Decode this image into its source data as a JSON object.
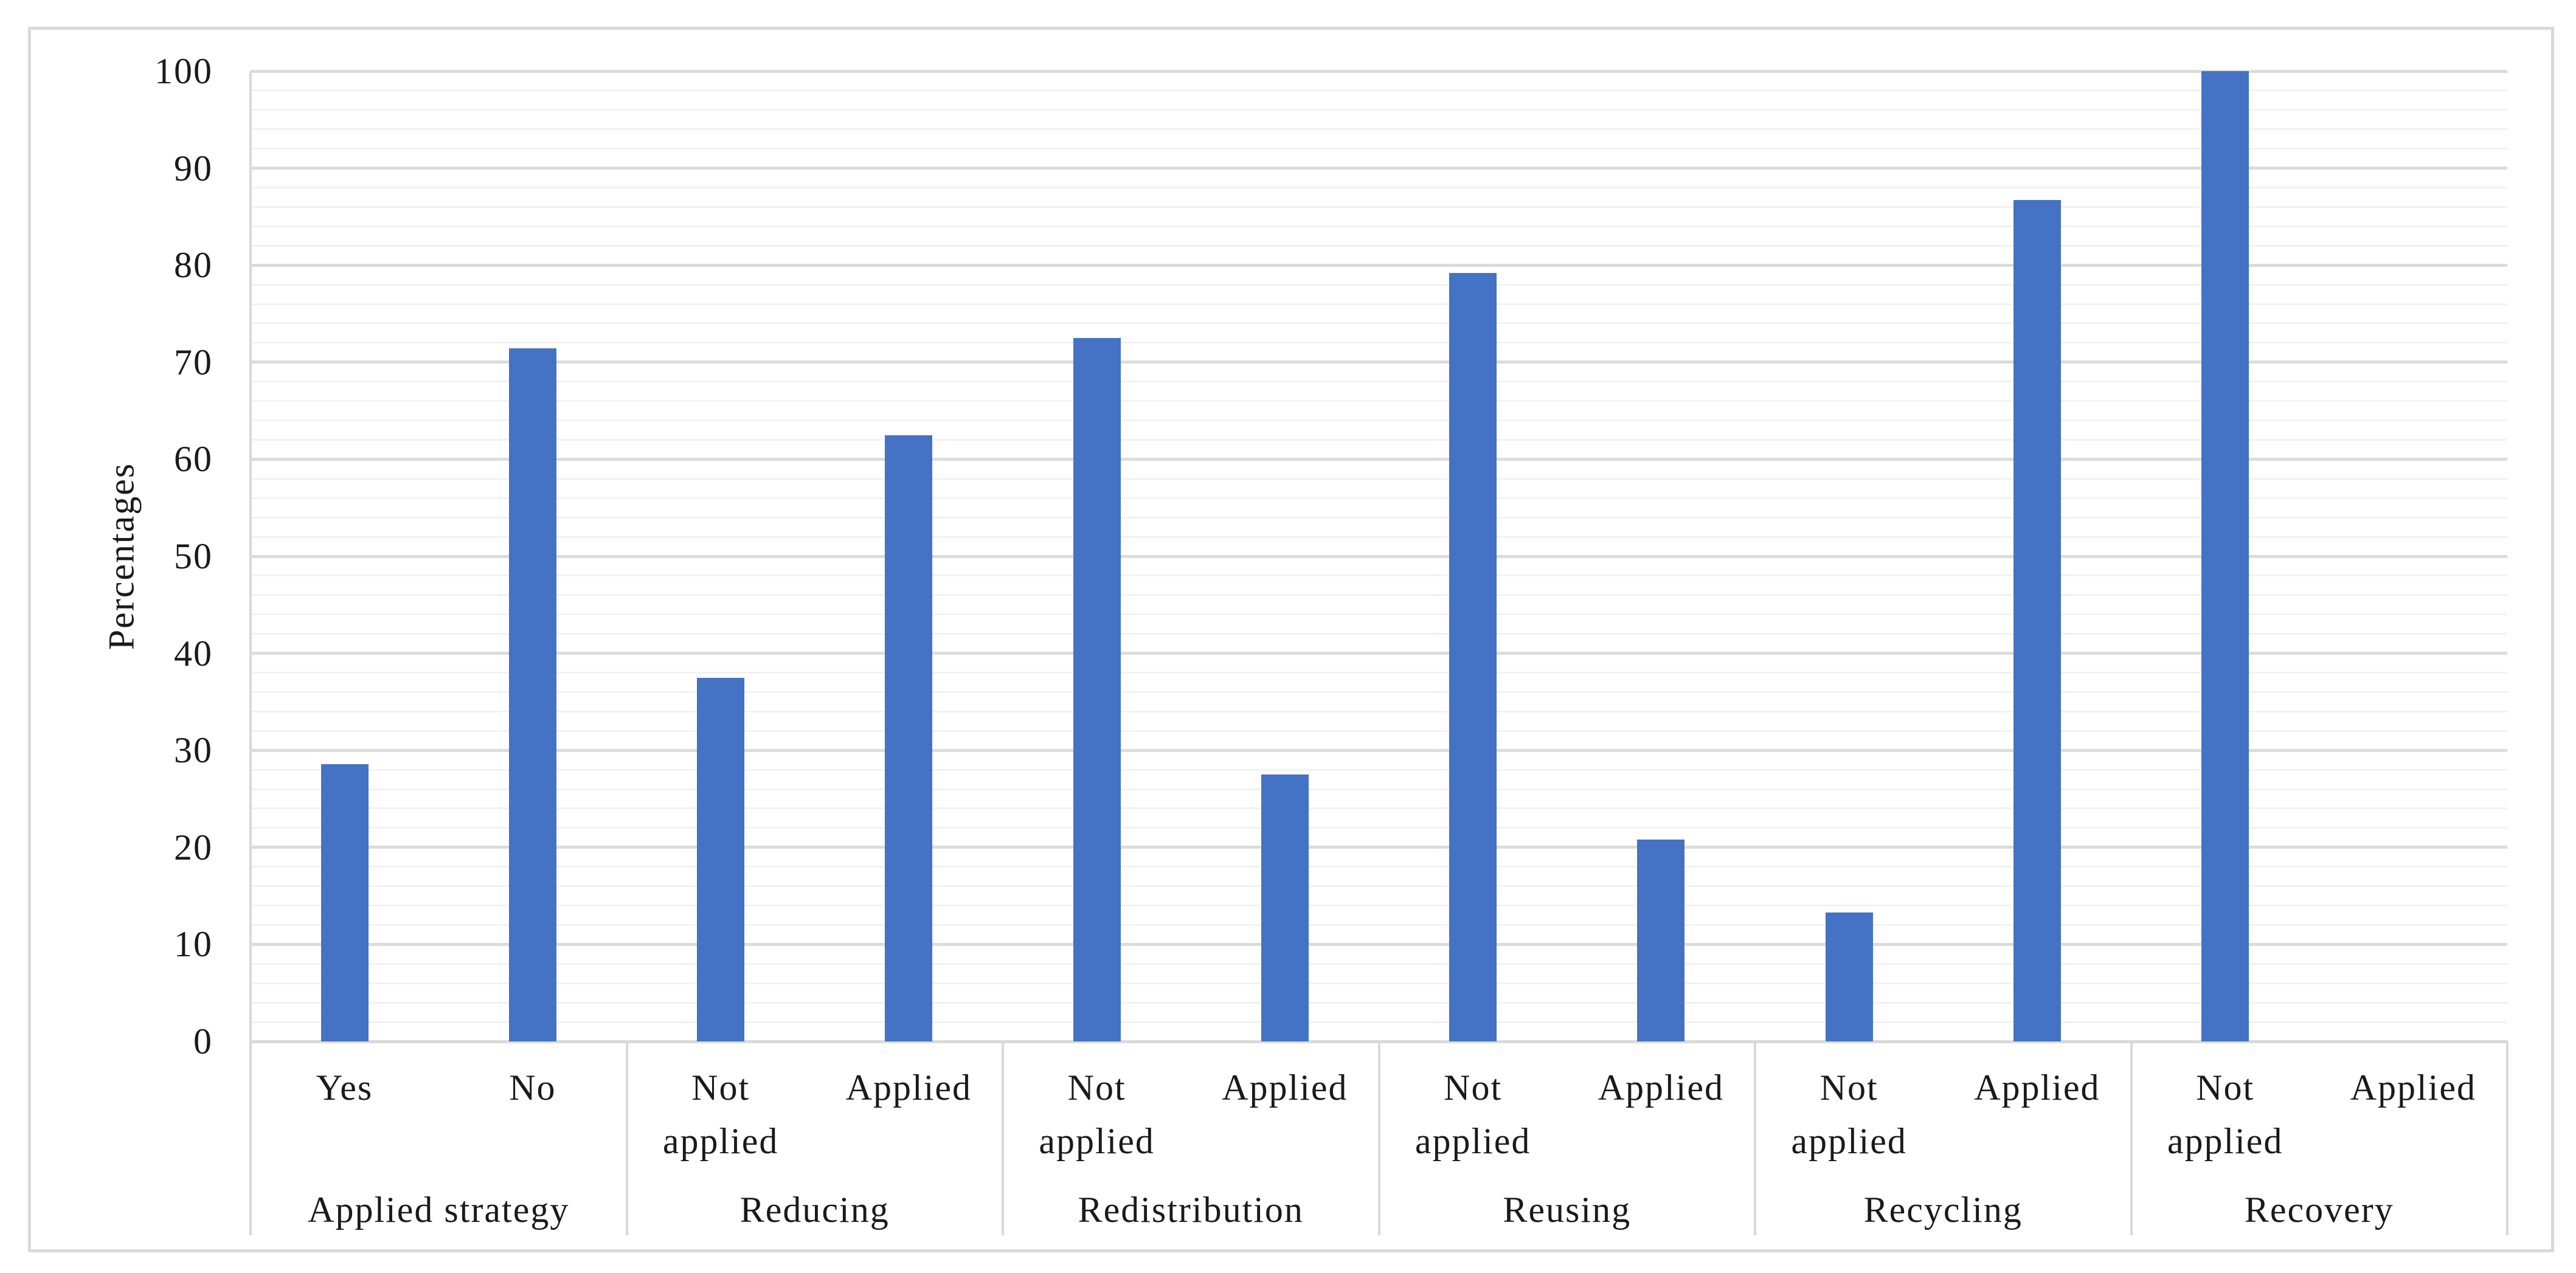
{
  "chart_data": {
    "type": "bar",
    "title": "",
    "ylabel": "Percentages",
    "xlabel": "",
    "ylim": [
      0,
      100
    ],
    "y_tick_step": 10,
    "y_minor_gridline_step": 2,
    "y_tick_labels": [
      "0",
      "10",
      "20",
      "30",
      "40",
      "50",
      "60",
      "70",
      "80",
      "90",
      "100"
    ],
    "grid": "horizontal major and minor gridlines on",
    "legend_position": "none",
    "bar_color": "#4472C4",
    "gridline_major_color": "#DCDCDC",
    "gridline_minor_color": "#F2F2F2",
    "axis_color": "#D9D9D9",
    "groups": [
      {
        "label": "Applied strategy",
        "categories": [
          "Yes",
          "No"
        ],
        "values": [
          28.6,
          71.4
        ]
      },
      {
        "label": "Reducing",
        "categories": [
          "Not applied",
          "Applied"
        ],
        "values": [
          37.5,
          62.5
        ]
      },
      {
        "label": "Redistribution",
        "categories": [
          "Not applied",
          "Applied"
        ],
        "values": [
          72.5,
          27.5
        ]
      },
      {
        "label": "Reusing",
        "categories": [
          "Not applied",
          "Applied"
        ],
        "values": [
          79.2,
          20.8
        ]
      },
      {
        "label": "Recycling",
        "categories": [
          "Not applied",
          "Applied"
        ],
        "values": [
          13.3,
          86.7
        ]
      },
      {
        "label": "Recovery",
        "categories": [
          "Not applied",
          "Applied"
        ],
        "values": [
          100,
          0
        ]
      }
    ]
  }
}
